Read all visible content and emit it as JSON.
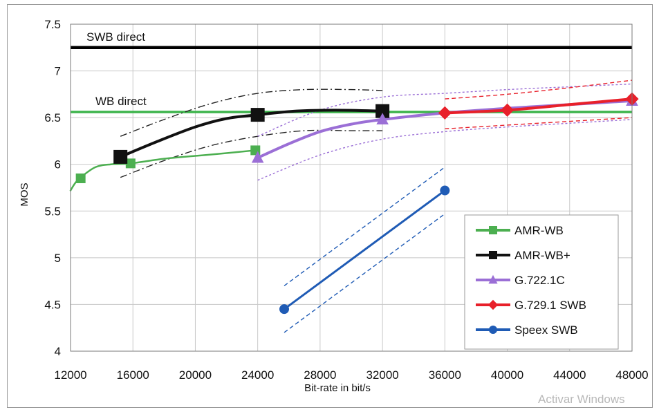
{
  "chart_data": {
    "type": "line",
    "title": "",
    "xlabel": "Bit-rate in bit/s",
    "ylabel": "MOS",
    "xlim": [
      12000,
      48000
    ],
    "ylim": [
      4,
      7.5
    ],
    "x_ticks": [
      12000,
      16000,
      20000,
      24000,
      28000,
      32000,
      36000,
      40000,
      44000,
      48000
    ],
    "y_ticks": [
      4,
      4.5,
      5,
      5.5,
      6,
      6.5,
      7,
      7.5
    ],
    "x_tick_labels": [
      "12000",
      "16000",
      "20000",
      "24000",
      "28000",
      "32000",
      "36000",
      "40000",
      "44000",
      "48000"
    ],
    "y_tick_labels": [
      "4",
      "4.5",
      "5",
      "5.5",
      "6",
      "6.5",
      "7",
      "7.5"
    ],
    "grid": true,
    "legend_position": "bottom-right",
    "reference_lines": [
      {
        "label": "SWB direct",
        "y": 7.25,
        "color": "#000000"
      },
      {
        "label": "WB direct",
        "y": 6.56,
        "color": "#3cb44b"
      }
    ],
    "series": [
      {
        "name": "AMR-WB",
        "color": "#4caf50",
        "marker": "square",
        "x": [
          12650,
          15850,
          23850
        ],
        "y": [
          5.85,
          6.01,
          6.15
        ],
        "curve_x": [
          12000,
          12300,
          12650,
          13600,
          14600,
          15850,
          18000,
          20000,
          22000,
          23850
        ],
        "curve_y": [
          5.72,
          5.8,
          5.86,
          5.97,
          6.0,
          6.01,
          6.06,
          6.09,
          6.12,
          6.15
        ]
      },
      {
        "name": "AMR-WB+",
        "color": "#111111",
        "marker": "square",
        "x": [
          15200,
          24000,
          32000
        ],
        "y": [
          6.08,
          6.53,
          6.57
        ],
        "curve_x": [
          15200,
          17500,
          20000,
          22000,
          24000,
          26500,
          29000,
          32000
        ],
        "curve_y": [
          6.08,
          6.24,
          6.4,
          6.49,
          6.53,
          6.57,
          6.58,
          6.57
        ]
      },
      {
        "name": "G.722.1C",
        "color": "#9b6fd6",
        "marker": "triangle",
        "x": [
          24000,
          32000,
          48000
        ],
        "y": [
          6.07,
          6.48,
          6.68
        ],
        "curve_x": [
          24000,
          26000,
          28000,
          30000,
          32000,
          36000,
          40000,
          44000,
          48000
        ],
        "curve_y": [
          6.07,
          6.22,
          6.35,
          6.43,
          6.48,
          6.55,
          6.6,
          6.64,
          6.68
        ]
      },
      {
        "name": "G.729.1 SWB",
        "color": "#e8202a",
        "marker": "diamond",
        "x": [
          36000,
          40000,
          48000
        ],
        "y": [
          6.55,
          6.58,
          6.7
        ],
        "curve_x": [
          36000,
          40000,
          44000,
          48000
        ],
        "curve_y": [
          6.55,
          6.58,
          6.64,
          6.7
        ]
      },
      {
        "name": "Speex SWB",
        "color": "#1f5bb5",
        "marker": "circle",
        "x": [
          25700,
          36000
        ],
        "y": [
          4.45,
          5.72
        ],
        "curve_x": [
          25700,
          36000
        ],
        "curve_y": [
          4.45,
          5.72
        ]
      }
    ],
    "confidence_bands": [
      {
        "series": "AMR-WB+",
        "color": "#222222",
        "style": "dashdot",
        "upper_x": [
          15200,
          18000,
          21000,
          24000,
          27000,
          30000,
          32000
        ],
        "upper_y": [
          6.3,
          6.48,
          6.65,
          6.76,
          6.8,
          6.8,
          6.79
        ],
        "lower_x": [
          15200,
          18000,
          21000,
          24000,
          27000,
          30000,
          32000
        ],
        "lower_y": [
          5.86,
          6.04,
          6.2,
          6.3,
          6.36,
          6.36,
          6.36
        ]
      },
      {
        "series": "G.722.1C",
        "color": "#9b6fd6",
        "style": "dotted",
        "upper_x": [
          24000,
          28000,
          32000,
          36000,
          40000,
          44000,
          48000
        ],
        "upper_y": [
          6.3,
          6.58,
          6.72,
          6.76,
          6.8,
          6.83,
          6.86
        ],
        "lower_x": [
          24000,
          28000,
          32000,
          36000,
          40000,
          44000,
          48000
        ],
        "lower_y": [
          5.83,
          6.1,
          6.27,
          6.35,
          6.4,
          6.44,
          6.48
        ]
      },
      {
        "series": "G.729.1 SWB",
        "color": "#e8202a",
        "style": "dashed",
        "upper_x": [
          36000,
          40000,
          44000,
          48000
        ],
        "upper_y": [
          6.7,
          6.75,
          6.82,
          6.9
        ],
        "lower_x": [
          36000,
          40000,
          44000,
          48000
        ],
        "lower_y": [
          6.38,
          6.42,
          6.46,
          6.5
        ]
      },
      {
        "series": "Speex SWB",
        "color": "#1f5bb5",
        "style": "dashed",
        "upper_x": [
          25700,
          36000
        ],
        "upper_y": [
          4.7,
          5.97
        ],
        "lower_x": [
          25700,
          36000
        ],
        "lower_y": [
          4.2,
          5.47
        ]
      }
    ]
  },
  "watermark": "Activar Windows"
}
